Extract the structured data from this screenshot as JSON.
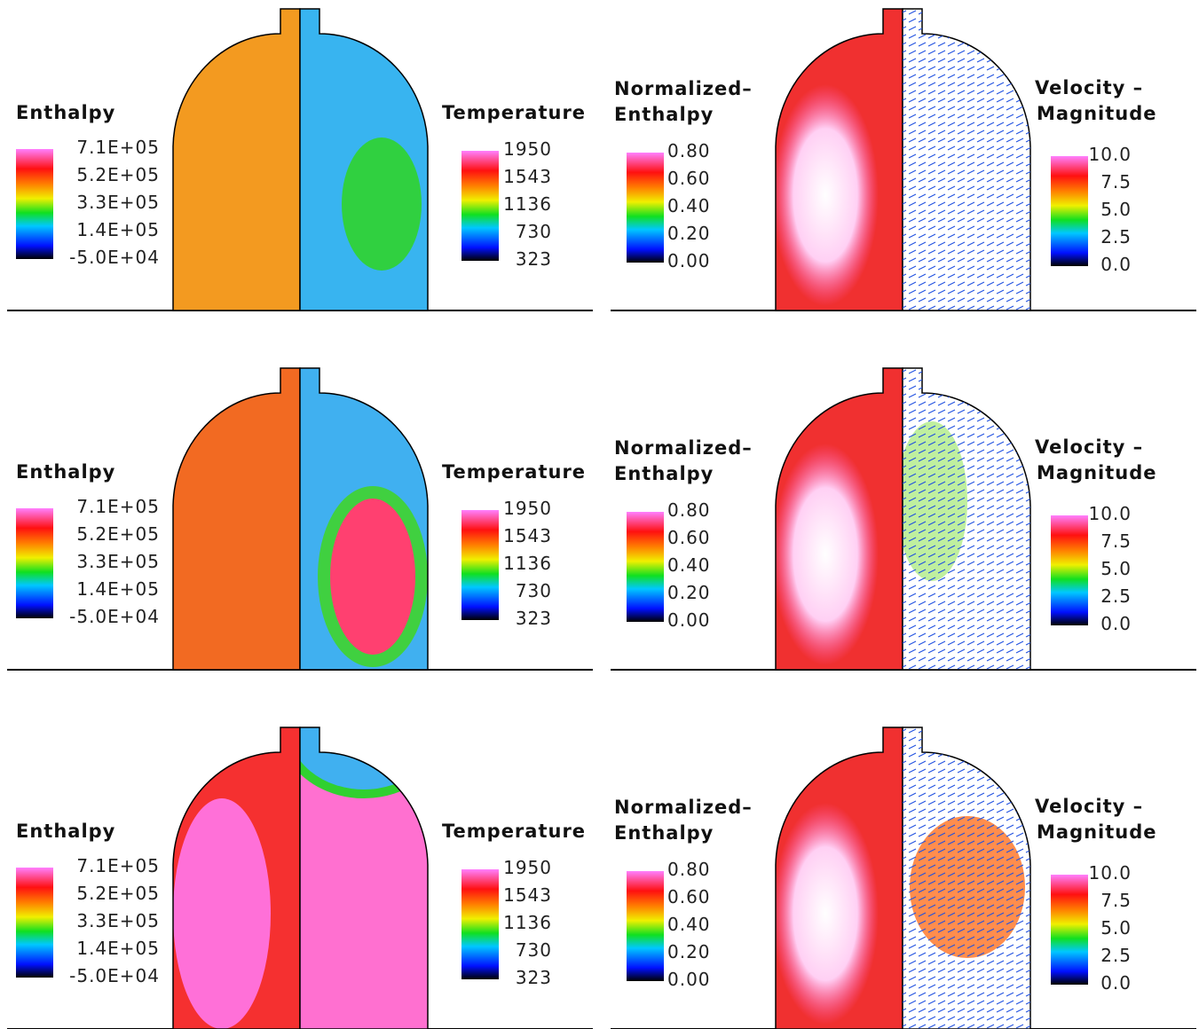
{
  "rows": [
    {
      "enthalpy": {
        "title": "Enthalpy",
        "ticks": [
          "7.1E+05",
          "5.2E+05",
          "3.3E+05",
          "1.4E+05",
          "-5.0E+04"
        ]
      },
      "temperature": {
        "title": "Temperature",
        "ticks": [
          "1950",
          "1543",
          "1136",
          "730",
          "323"
        ]
      },
      "normalized_enthalpy": {
        "title_lines": [
          "Normalized–",
          "Enthalpy"
        ],
        "ticks": [
          "0.80",
          "0.60",
          "0.40",
          "0.20",
          "0.00"
        ]
      },
      "velocity_magnitude": {
        "title_lines": [
          "Velocity –",
          "Magnitude"
        ],
        "ticks": [
          "10.0",
          "7.5",
          "5.0",
          "2.5",
          "0.0"
        ]
      }
    },
    {
      "enthalpy": {
        "title": "Enthalpy",
        "ticks": [
          "7.1E+05",
          "5.2E+05",
          "3.3E+05",
          "1.4E+05",
          "-5.0E+04"
        ]
      },
      "temperature": {
        "title": "Temperature",
        "ticks": [
          "1950",
          "1543",
          "1136",
          "730",
          "323"
        ]
      },
      "normalized_enthalpy": {
        "title_lines": [
          "Normalized–",
          "Enthalpy"
        ],
        "ticks": [
          "0.80",
          "0.60",
          "0.40",
          "0.20",
          "0.00"
        ]
      },
      "velocity_magnitude": {
        "title_lines": [
          "Velocity –",
          "Magnitude"
        ],
        "ticks": [
          "10.0",
          "7.5",
          "5.0",
          "2.5",
          "0.0"
        ]
      }
    },
    {
      "enthalpy": {
        "title": "Enthalpy",
        "ticks": [
          "7.1E+05",
          "5.2E+05",
          "3.3E+05",
          "1.4E+05",
          "-5.0E+04"
        ]
      },
      "temperature": {
        "title": "Temperature",
        "ticks": [
          "1950",
          "1543",
          "1136",
          "730",
          "323"
        ]
      },
      "normalized_enthalpy": {
        "title_lines": [
          "Normalized–",
          "Enthalpy"
        ],
        "ticks": [
          "0.80",
          "0.60",
          "0.40",
          "0.20",
          "0.00"
        ]
      },
      "velocity_magnitude": {
        "title_lines": [
          "Velocity –",
          "Magnitude"
        ],
        "ticks": [
          "10.0",
          "7.5",
          "5.0",
          "2.5",
          "0.0"
        ]
      }
    }
  ]
}
